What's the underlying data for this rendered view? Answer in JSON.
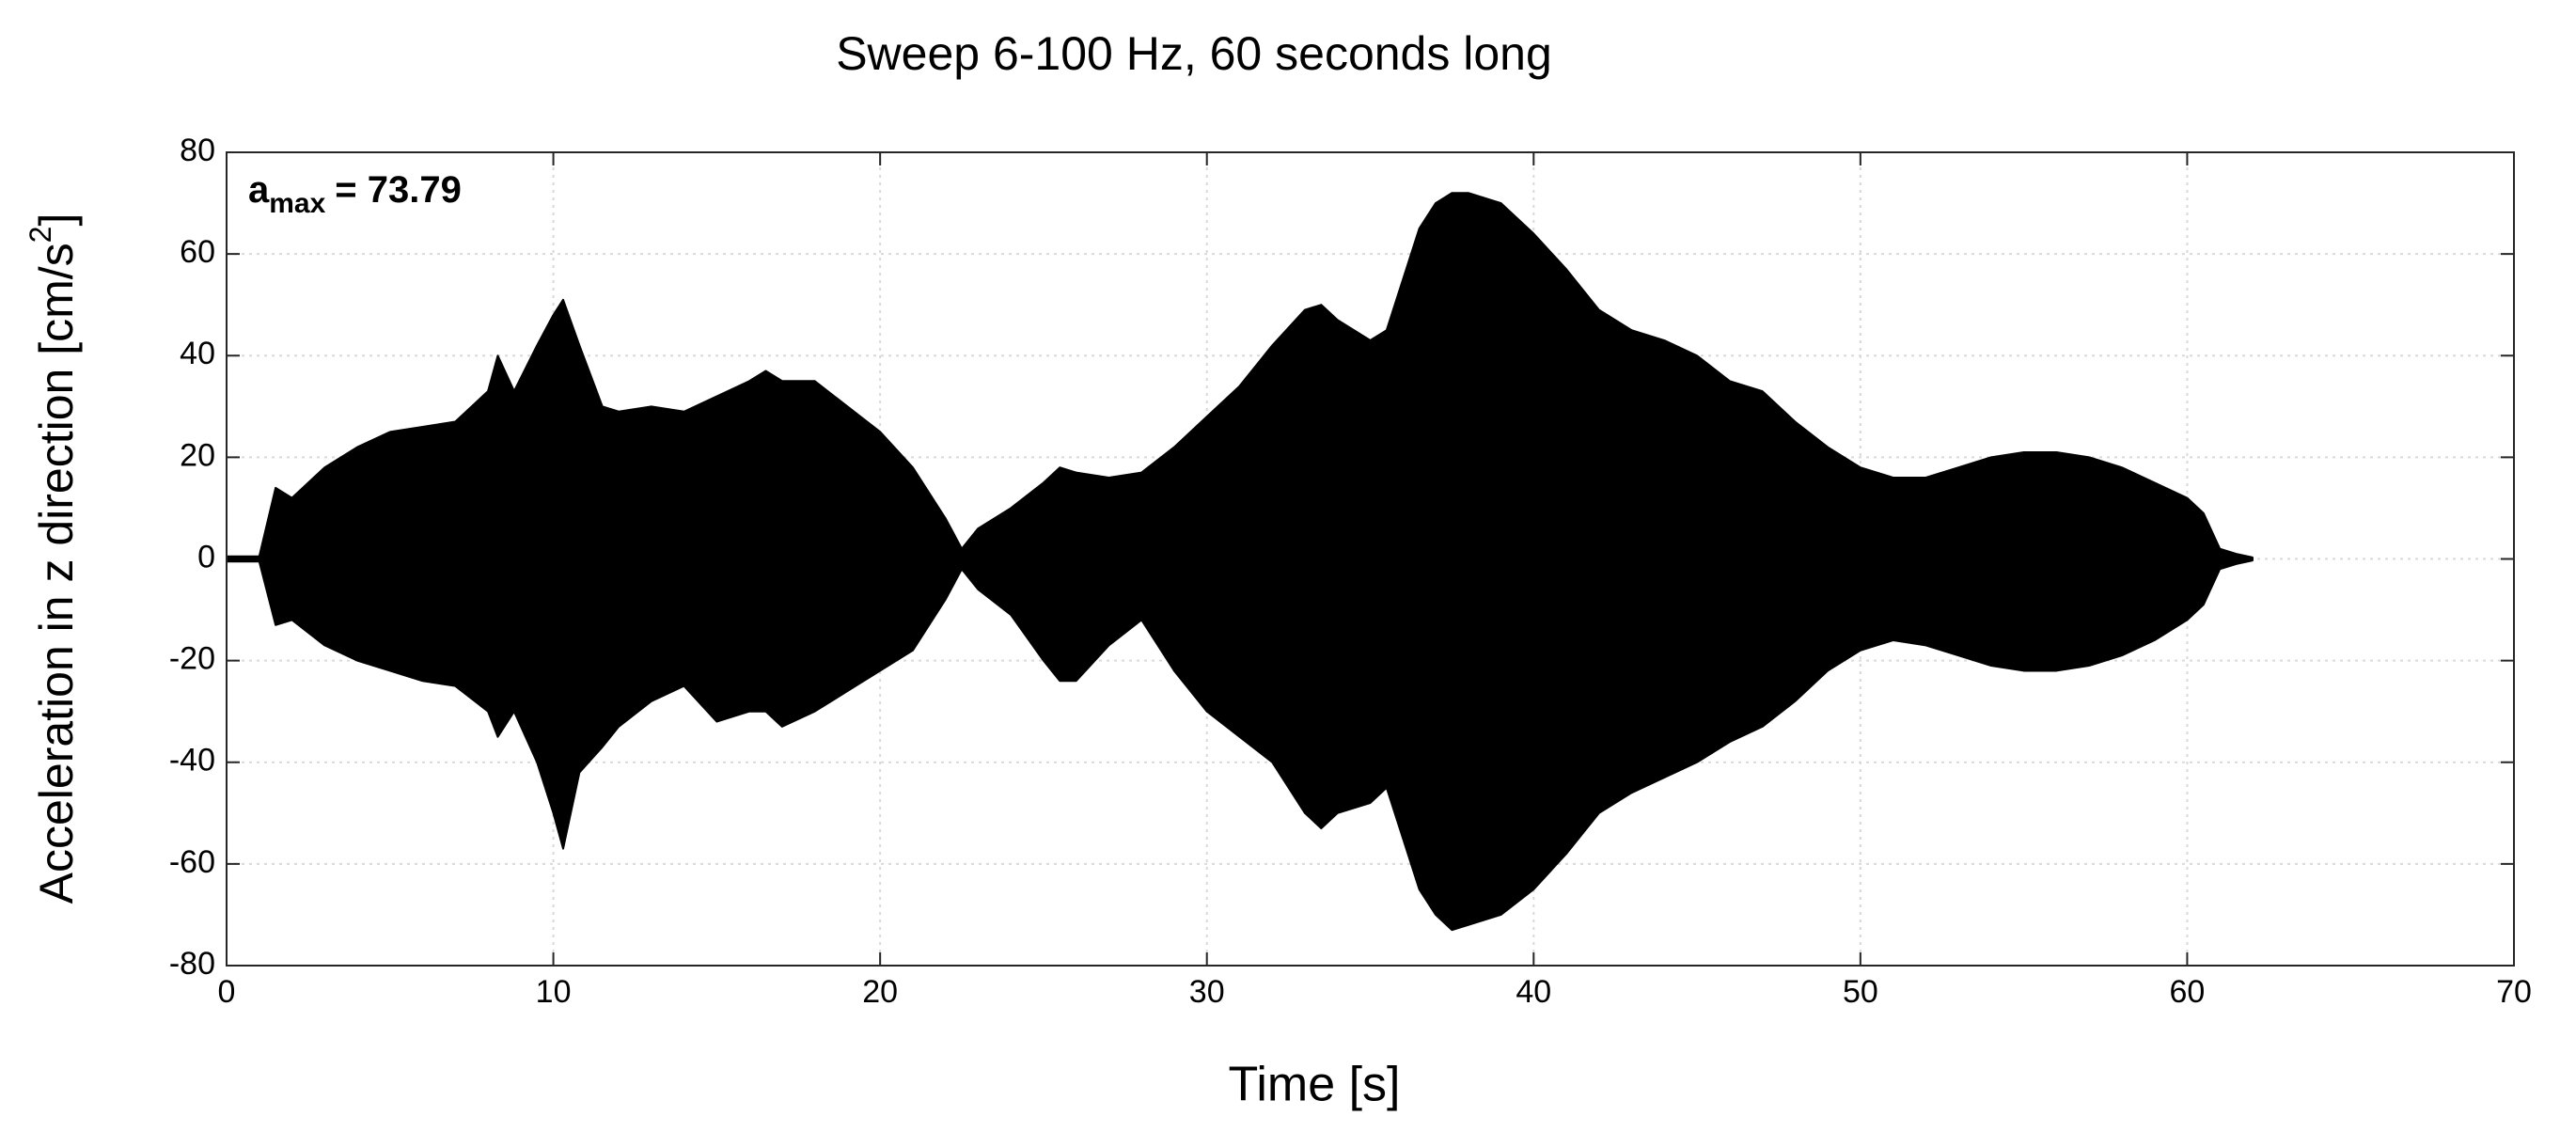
{
  "chart_data": {
    "type": "area",
    "title": "Sweep 6-100 Hz, 60 seconds long",
    "xlabel": "Time [s]",
    "ylabel": {
      "text": "Acceleration in z direction [cm/s",
      "superscript": "2",
      "suffix": "]"
    },
    "annotation": {
      "symbol": "a",
      "subscript": "max",
      "text": "= 73.79"
    },
    "xlim": [
      0,
      70
    ],
    "xticks": [
      0,
      10,
      20,
      30,
      40,
      50,
      60,
      70
    ],
    "ylim": [
      -80,
      80
    ],
    "yticks": [
      -80,
      -60,
      -40,
      -20,
      0,
      20,
      40,
      60,
      80
    ],
    "grid": true,
    "x": [
      0,
      1,
      1.5,
      2,
      3,
      4,
      5,
      6,
      7,
      8,
      8.3,
      8.8,
      9.5,
      10,
      10.3,
      10.8,
      11.5,
      12,
      13,
      14,
      15,
      16,
      16.5,
      17,
      18,
      19,
      20,
      21,
      22,
      22.5,
      23,
      24,
      25,
      25.5,
      26,
      27,
      28,
      29,
      30,
      31,
      32,
      33,
      33.5,
      34,
      35,
      35.5,
      36,
      36.5,
      37,
      37.5,
      38,
      39,
      40,
      41,
      42,
      43,
      44,
      45,
      46,
      47,
      48,
      49,
      50,
      51,
      52,
      53,
      54,
      55,
      56,
      57,
      58,
      59,
      60,
      60.5,
      61,
      61.5,
      62
    ],
    "series": [
      {
        "color": "#000000",
        "values": [
          0.5,
          0.5,
          14,
          12,
          18,
          22,
          25,
          26,
          27,
          33,
          40,
          33,
          42,
          48,
          51,
          42,
          30,
          29,
          30,
          29,
          32,
          35,
          37,
          35,
          35,
          30,
          25,
          18,
          8,
          2,
          6,
          10,
          15,
          18,
          17,
          16,
          17,
          22,
          28,
          34,
          42,
          49,
          50,
          47,
          43,
          45,
          55,
          65,
          70,
          72,
          72,
          70,
          64,
          57,
          49,
          45,
          43,
          40,
          35,
          33,
          27,
          22,
          18,
          16,
          16,
          18,
          20,
          21,
          21,
          20,
          18,
          15,
          12,
          9,
          2,
          1,
          0.3
        ]
      },
      {
        "color": "#000000",
        "values": [
          -0.5,
          -0.5,
          -13,
          -12,
          -17,
          -20,
          -22,
          -24,
          -25,
          -30,
          -35,
          -30,
          -40,
          -50,
          -57,
          -42,
          -37,
          -33,
          -28,
          -25,
          -32,
          -30,
          -30,
          -33,
          -30,
          -26,
          -22,
          -18,
          -8,
          -2,
          -6,
          -11,
          -20,
          -24,
          -24,
          -17,
          -12,
          -22,
          -30,
          -35,
          -40,
          -50,
          -53,
          -50,
          -48,
          -45,
          -55,
          -65,
          -70,
          -73,
          -72,
          -70,
          -65,
          -58,
          -50,
          -46,
          -43,
          -40,
          -36,
          -33,
          -28,
          -22,
          -18,
          -16,
          -17,
          -19,
          -21,
          -22,
          -22,
          -21,
          -19,
          -16,
          -12,
          -9,
          -2,
          -1,
          -0.3
        ]
      }
    ]
  }
}
